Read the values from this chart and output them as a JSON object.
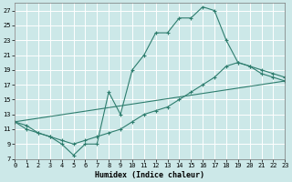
{
  "xlabel": "Humidex (Indice chaleur)",
  "bg_color": "#cce8e8",
  "grid_color": "#ffffff",
  "line_color": "#2e7d6e",
  "xlim": [
    0,
    23
  ],
  "ylim": [
    7,
    28
  ],
  "xticks": [
    0,
    1,
    2,
    3,
    4,
    5,
    6,
    7,
    8,
    9,
    10,
    11,
    12,
    13,
    14,
    15,
    16,
    17,
    18,
    19,
    20,
    21,
    22,
    23
  ],
  "yticks": [
    7,
    9,
    11,
    13,
    15,
    17,
    19,
    21,
    23,
    25,
    27
  ],
  "line1_x": [
    0,
    1,
    2,
    3,
    4,
    5,
    6,
    7,
    8,
    9,
    10,
    11,
    12,
    13,
    14,
    15,
    16,
    17,
    18,
    19,
    20,
    21,
    22,
    23
  ],
  "line1_y": [
    12,
    11,
    10.5,
    10,
    9,
    7.5,
    9,
    9,
    16,
    13,
    19,
    21,
    24,
    24,
    26,
    26,
    27.5,
    27,
    23,
    20,
    19.5,
    18.5,
    18,
    17.5
  ],
  "line2_x": [
    0,
    23
  ],
  "line2_y": [
    12,
    17.5
  ],
  "line3_x": [
    0,
    1,
    2,
    3,
    4,
    5,
    6,
    7,
    8,
    9,
    10,
    11,
    12,
    13,
    14,
    15,
    16,
    17,
    18,
    19,
    20,
    21,
    22,
    23
  ],
  "line3_y": [
    12,
    11.5,
    10.5,
    10,
    9.5,
    9,
    9.5,
    10,
    10.5,
    11,
    12,
    13,
    13.5,
    14,
    15,
    16,
    17,
    18,
    19.5,
    20,
    19.5,
    19,
    18.5,
    18
  ]
}
